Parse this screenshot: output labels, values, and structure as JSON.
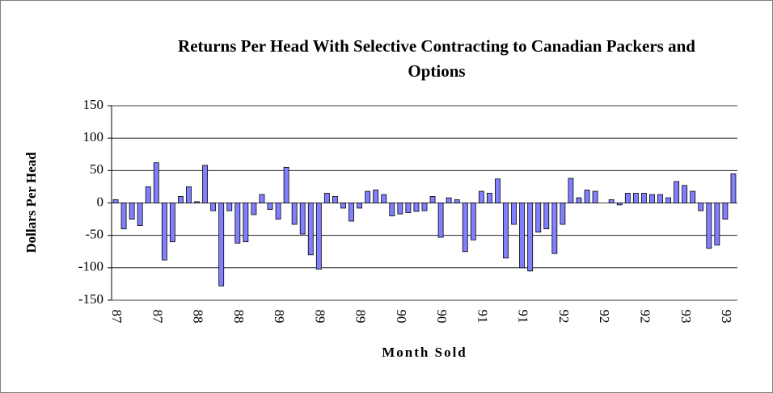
{
  "chart_data": {
    "type": "bar",
    "title": "Returns Per Head With Selective Contracting to Canadian Packers and Options",
    "x_label": "Month Sold",
    "y_label": "Dollars Per Head",
    "categories": [
      "87",
      null,
      null,
      null,
      null,
      "87",
      null,
      null,
      null,
      null,
      "88",
      null,
      null,
      null,
      null,
      "88",
      null,
      null,
      null,
      null,
      "89",
      null,
      null,
      null,
      null,
      "89",
      null,
      null,
      null,
      null,
      "89",
      null,
      null,
      null,
      null,
      "90",
      null,
      null,
      null,
      null,
      "90",
      null,
      null,
      null,
      null,
      "91",
      null,
      null,
      null,
      null,
      "91",
      null,
      null,
      null,
      null,
      "92",
      null,
      null,
      null,
      null,
      "92",
      null,
      null,
      null,
      null,
      "92",
      null,
      null,
      null,
      null,
      "93",
      null,
      null,
      null,
      null,
      "93",
      null
    ],
    "values": [
      5,
      -40,
      -25,
      -35,
      25,
      62,
      -88,
      -60,
      10,
      25,
      2,
      58,
      -12,
      -128,
      -12,
      -62,
      -60,
      -18,
      13,
      -10,
      -25,
      55,
      -33,
      -48,
      -80,
      -102,
      15,
      10,
      -8,
      -28,
      -8,
      18,
      20,
      13,
      -20,
      -17,
      -15,
      -13,
      -12,
      10,
      -53,
      8,
      5,
      -75,
      -57,
      18,
      15,
      37,
      -85,
      -33,
      -100,
      -105,
      -45,
      -40,
      -78,
      -33,
      38,
      8,
      20,
      18,
      0,
      5,
      -3,
      15,
      15,
      15,
      13,
      13,
      8,
      33,
      27,
      18,
      -12,
      -70,
      -65,
      -25,
      45
    ],
    "color": "#8080ff",
    "ylim": [
      -150,
      150
    ],
    "yticks": [
      -150,
      -100,
      -50,
      0,
      50,
      100,
      150
    ],
    "grid": true
  }
}
